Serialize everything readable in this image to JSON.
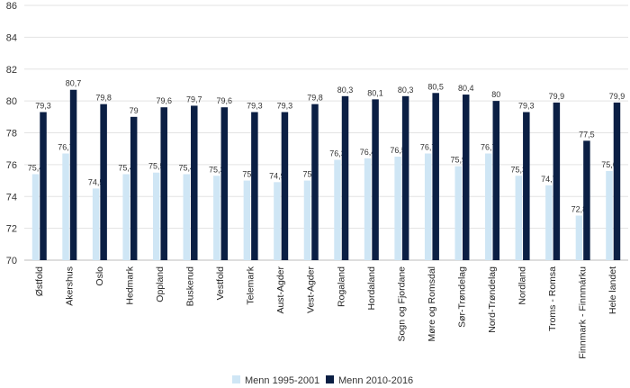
{
  "chart_data": {
    "type": "bar",
    "categories": [
      "Østfold",
      "Akershus",
      "Oslo",
      "Hedmark",
      "Oppland",
      "Buskerud",
      "Vestfold",
      "Telemark",
      "Aust-Agder",
      "Vest-Agder",
      "Rogaland",
      "Hordaland",
      "Sogn og Fjordane",
      "Møre og Romsdal",
      "Sør-Trøndelag",
      "Nord-Trøndelag",
      "Nordland",
      "Troms - Romsa",
      "Finnmark - Finnmárku",
      "Hele landet"
    ],
    "series": [
      {
        "name": "Menn 1995-2001",
        "color": "#cfe6f5",
        "values": [
          75.4,
          76.7,
          74.5,
          75.4,
          75.5,
          75.4,
          75.3,
          75,
          74.9,
          75,
          76.3,
          76.4,
          76.5,
          76.7,
          75.9,
          76.7,
          75.3,
          74.7,
          72.8,
          75.6
        ],
        "labels": [
          "75,4",
          "76,7",
          "74,5",
          "75,4",
          "75,5",
          "75,4",
          "75,3",
          "75",
          "74,9",
          "75",
          "76,3",
          "76,4",
          "76,5",
          "76,7",
          "75,9",
          "76,7",
          "75,3",
          "74,7",
          "72,8",
          "75,6"
        ]
      },
      {
        "name": "Menn 2010-2016",
        "color": "#0b1f44",
        "values": [
          79.3,
          80.7,
          79.8,
          79,
          79.6,
          79.7,
          79.6,
          79.3,
          79.3,
          79.8,
          80.3,
          80.1,
          80.3,
          80.5,
          80.4,
          80,
          79.3,
          79.9,
          77.5,
          79.9
        ],
        "labels": [
          "79,3",
          "80,7",
          "79,8",
          "79",
          "79,6",
          "79,7",
          "79,6",
          "79,3",
          "79,3",
          "79,8",
          "80,3",
          "80,1",
          "80,3",
          "80,5",
          "80,4",
          "80",
          "79,3",
          "79,9",
          "77,5",
          "79,9"
        ]
      }
    ],
    "ylim": [
      70,
      86
    ],
    "yticks": [
      "70",
      "72",
      "74",
      "76",
      "78",
      "80",
      "82",
      "84",
      "86"
    ],
    "grid": true,
    "legend": "bottom-center"
  }
}
